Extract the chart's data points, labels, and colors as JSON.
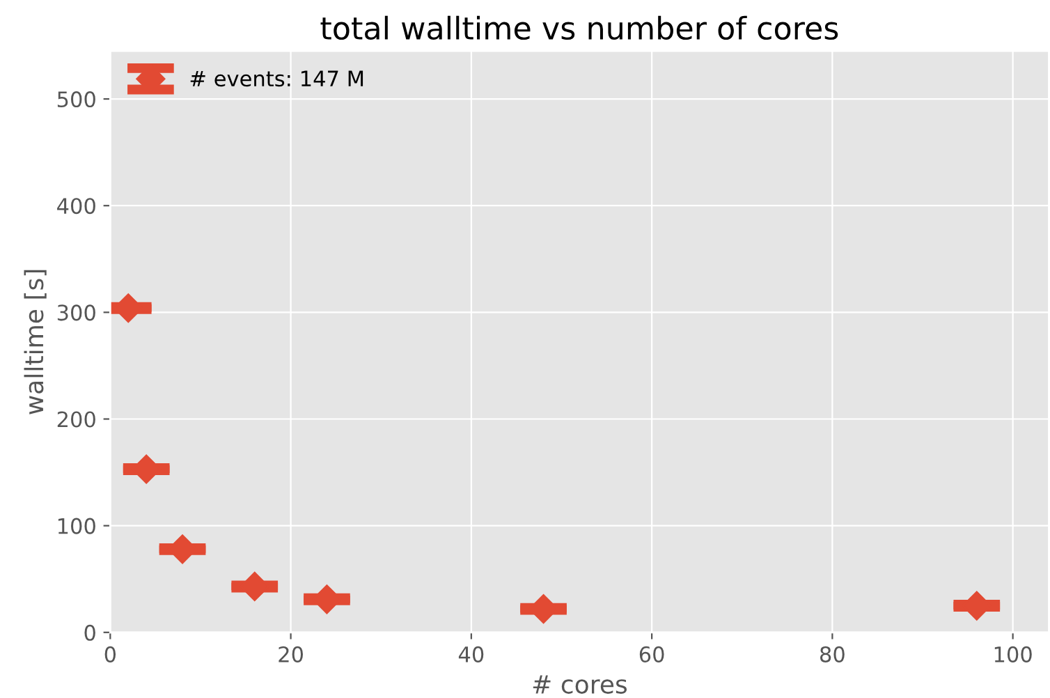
{
  "chart_data": {
    "type": "scatter",
    "title": "total walltime vs number of cores",
    "xlabel": "# cores",
    "ylabel": "walltime [s]",
    "x": [
      2,
      4,
      8,
      16,
      24,
      48,
      96
    ],
    "series": [
      {
        "name": "# events: 147 M",
        "color": "#e24a33",
        "values": [
          304,
          153,
          78,
          43,
          31,
          22,
          25
        ],
        "errors": [
          1,
          1,
          1,
          1,
          1,
          1,
          1
        ]
      }
    ],
    "xlim": [
      0,
      104
    ],
    "ylim": [
      0,
      545
    ],
    "xticks": [
      0,
      20,
      40,
      60,
      80,
      100
    ],
    "yticks": [
      0,
      100,
      200,
      300,
      400,
      500
    ],
    "grid": true,
    "legend": "top left",
    "marker": "diamond"
  }
}
